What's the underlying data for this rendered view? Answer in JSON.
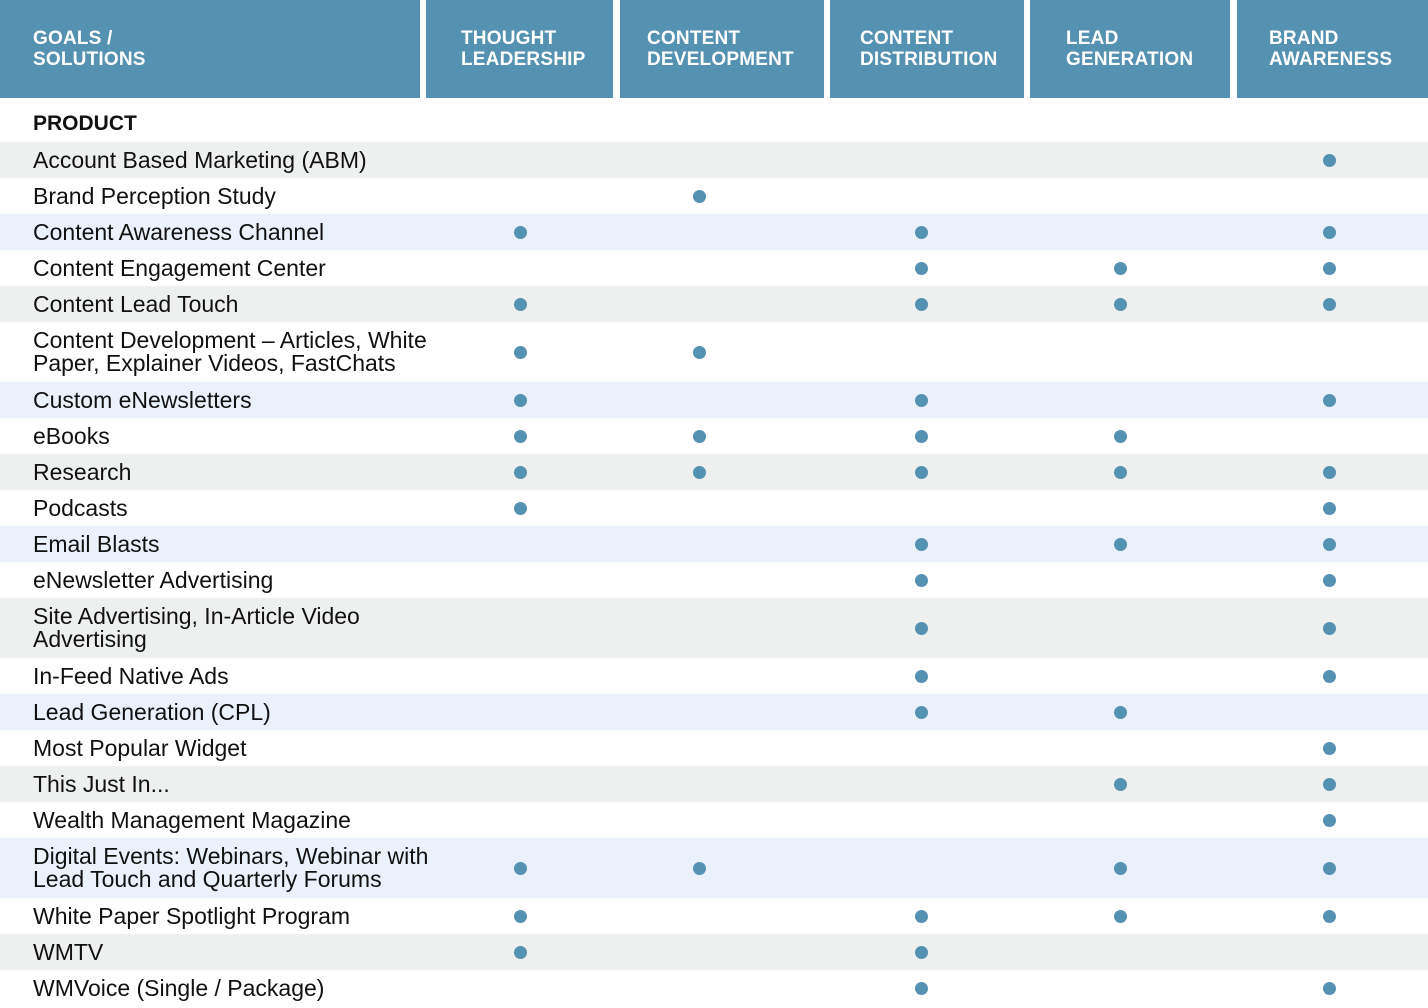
{
  "header": {
    "corner_label": "GOALS / SOLUTIONS",
    "columns": [
      "THOUGHT\nLEADERSHIP",
      "CONTENT\nDEVELOPMENT",
      "CONTENT\nDISTRIBUTION",
      "LEAD\nGENERATION",
      "BRAND\nAWARENESS"
    ]
  },
  "section_title": "PRODUCT",
  "colors": {
    "header_bg": "#5592b1",
    "dot": "#5592b1",
    "row_gray": "#eef0f0",
    "row_blue": "#eaf1fb"
  },
  "rows": [
    {
      "label": "Account Based Marketing (ABM)",
      "marks": [
        false,
        false,
        false,
        false,
        true
      ],
      "shade": "gray"
    },
    {
      "label": "Brand Perception Study",
      "marks": [
        false,
        true,
        false,
        false,
        false
      ],
      "shade": "white"
    },
    {
      "label": "Content Awareness Channel",
      "marks": [
        true,
        false,
        true,
        false,
        true
      ],
      "shade": "blue"
    },
    {
      "label": "Content Engagement Center",
      "marks": [
        false,
        false,
        true,
        true,
        true
      ],
      "shade": "white"
    },
    {
      "label": "Content Lead Touch",
      "marks": [
        true,
        false,
        true,
        true,
        true
      ],
      "shade": "gray"
    },
    {
      "label": "Content Development – Articles, White\nPaper, Explainer Videos, FastChats",
      "marks": [
        true,
        true,
        false,
        false,
        false
      ],
      "shade": "white"
    },
    {
      "label": "Custom eNewsletters",
      "marks": [
        true,
        false,
        true,
        false,
        true
      ],
      "shade": "blue"
    },
    {
      "label": "eBooks",
      "marks": [
        true,
        true,
        true,
        true,
        false
      ],
      "shade": "white"
    },
    {
      "label": "Research",
      "marks": [
        true,
        true,
        true,
        true,
        true
      ],
      "shade": "gray"
    },
    {
      "label": "Podcasts",
      "marks": [
        true,
        false,
        false,
        false,
        true
      ],
      "shade": "white"
    },
    {
      "label": "Email Blasts",
      "marks": [
        false,
        false,
        true,
        true,
        true
      ],
      "shade": "blue"
    },
    {
      "label": "eNewsletter Advertising",
      "marks": [
        false,
        false,
        true,
        false,
        true
      ],
      "shade": "white"
    },
    {
      "label": "Site Advertising, In-Article Video\nAdvertising",
      "marks": [
        false,
        false,
        true,
        false,
        true
      ],
      "shade": "gray"
    },
    {
      "label": "In-Feed Native Ads",
      "marks": [
        false,
        false,
        true,
        false,
        true
      ],
      "shade": "white"
    },
    {
      "label": "Lead Generation (CPL)",
      "marks": [
        false,
        false,
        true,
        true,
        false
      ],
      "shade": "blue"
    },
    {
      "label": "Most Popular Widget",
      "marks": [
        false,
        false,
        false,
        false,
        true
      ],
      "shade": "white"
    },
    {
      "label": "This Just In...",
      "marks": [
        false,
        false,
        false,
        true,
        true
      ],
      "shade": "gray"
    },
    {
      "label": "Wealth Management Magazine",
      "marks": [
        false,
        false,
        false,
        false,
        true
      ],
      "shade": "white"
    },
    {
      "label": "Digital Events: Webinars, Webinar with\nLead Touch and Quarterly Forums",
      "marks": [
        true,
        true,
        false,
        true,
        true
      ],
      "shade": "blue"
    },
    {
      "label": "White Paper Spotlight Program",
      "marks": [
        true,
        false,
        true,
        true,
        true
      ],
      "shade": "white"
    },
    {
      "label": "WMTV",
      "marks": [
        true,
        false,
        true,
        false,
        false
      ],
      "shade": "gray"
    },
    {
      "label": "WMVoice (Single / Package)",
      "marks": [
        false,
        false,
        true,
        false,
        true
      ],
      "shade": "white"
    }
  ]
}
